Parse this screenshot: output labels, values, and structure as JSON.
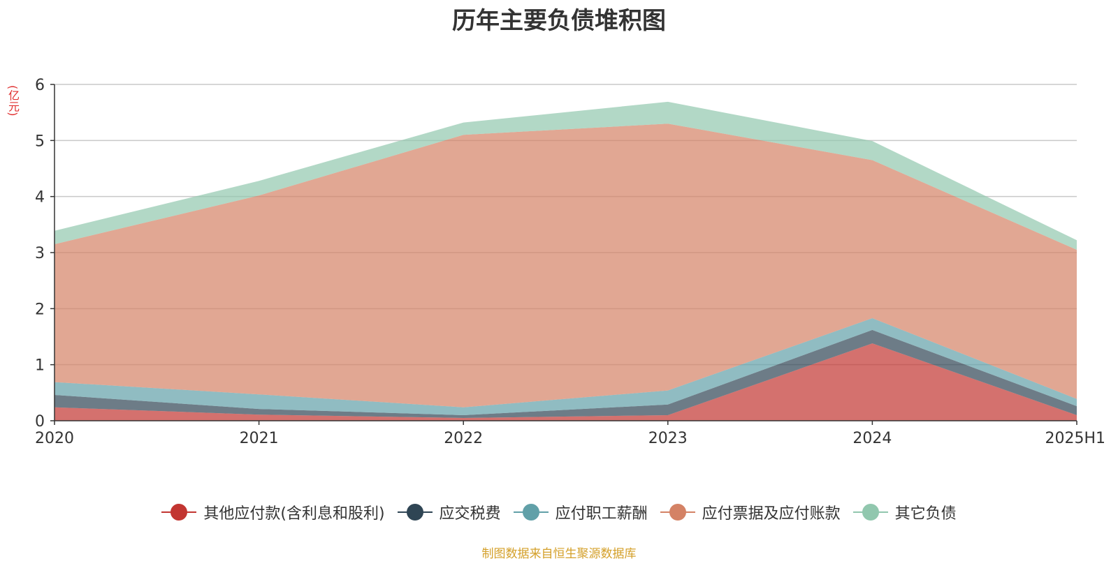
{
  "title": "历年主要负债堆积图",
  "unit_label": "(亿元)",
  "source_note": "制图数据来自恒生聚源数据库",
  "chart_data": {
    "type": "area",
    "stacked": true,
    "title": "历年主要负债堆积图",
    "ylabel": "(亿元)",
    "x": [
      "2020",
      "2021",
      "2022",
      "2023",
      "2024",
      "2025H1"
    ],
    "ylim": [
      0,
      6
    ],
    "yticks": [
      0,
      1,
      2,
      3,
      4,
      5,
      6
    ],
    "grid": true,
    "legend_position": "bottom",
    "series": [
      {
        "name": "其他应付款(含利息和股利)",
        "values": [
          0.24,
          0.11,
          0.05,
          0.1,
          1.38,
          0.1
        ],
        "color": "#c23531"
      },
      {
        "name": "应交税费",
        "values": [
          0.22,
          0.1,
          0.05,
          0.19,
          0.24,
          0.16
        ],
        "color": "#2f4554"
      },
      {
        "name": "应付职工薪酬",
        "values": [
          0.23,
          0.26,
          0.14,
          0.25,
          0.21,
          0.13
        ],
        "color": "#61a0a8"
      },
      {
        "name": "应付票据及应付账款",
        "values": [
          2.46,
          3.55,
          4.86,
          4.76,
          2.82,
          2.66
        ],
        "color": "#d48265"
      },
      {
        "name": "其它负债",
        "values": [
          0.24,
          0.26,
          0.22,
          0.39,
          0.34,
          0.17
        ],
        "color": "#91c7ae"
      }
    ]
  }
}
